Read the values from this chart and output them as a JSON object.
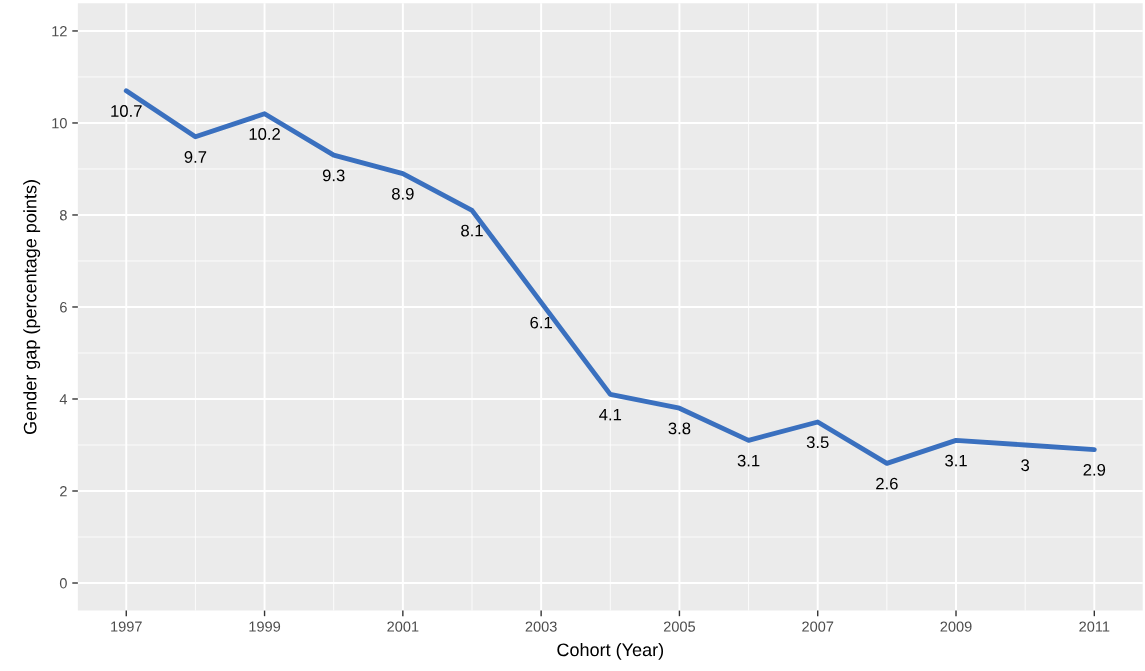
{
  "chart_data": {
    "type": "line",
    "xlabel": "Cohort (Year)",
    "ylabel": "Gender gap (percentage points)",
    "x": [
      1997,
      1998,
      1999,
      2000,
      2001,
      2002,
      2003,
      2004,
      2005,
      2006,
      2007,
      2008,
      2009,
      2010,
      2011
    ],
    "series": [
      {
        "color": "#3a70bf",
        "values": [
          10.7,
          9.7,
          10.2,
          9.3,
          8.9,
          8.1,
          6.1,
          4.1,
          3.8,
          3.1,
          3.5,
          2.6,
          3.1,
          3,
          2.9
        ]
      }
    ],
    "xlim": [
      1996.3,
      2011.7
    ],
    "xticks": [
      1997,
      1999,
      2001,
      2003,
      2005,
      2007,
      2009,
      2011
    ],
    "ylim": [
      -0.6,
      12.6
    ],
    "yticks": [
      0,
      2,
      4,
      6,
      8,
      10,
      12
    ],
    "grid": true,
    "data_labels": true,
    "marker": "none",
    "line_style": "solid"
  }
}
